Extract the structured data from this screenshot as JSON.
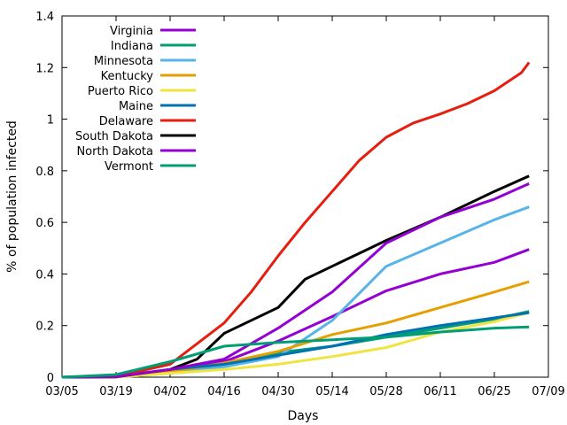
{
  "chart_data": {
    "type": "line",
    "xlabel": "Days",
    "ylabel": "% of population infected",
    "x_ticks": [
      "03/05",
      "03/19",
      "04/02",
      "04/16",
      "04/30",
      "05/14",
      "05/28",
      "06/11",
      "06/25",
      "07/09"
    ],
    "y_ticks": [
      "0",
      "0.2",
      "0.4",
      "0.6",
      "0.8",
      "1",
      "1.2",
      "1.4"
    ],
    "xlim": [
      "03/05",
      "07/09"
    ],
    "ylim": [
      0,
      1.4
    ],
    "grid": false,
    "legend_position": "top-left",
    "series": [
      {
        "name": "Virginia",
        "color": "#9400d3",
        "points": [
          [
            "03/05",
            0
          ],
          [
            "03/19",
            0.001
          ],
          [
            "04/02",
            0.02
          ],
          [
            "04/16",
            0.06
          ],
          [
            "04/30",
            0.14
          ],
          [
            "05/14",
            0.235
          ],
          [
            "05/28",
            0.335
          ],
          [
            "06/11",
            0.4
          ],
          [
            "06/25",
            0.445
          ],
          [
            "07/04",
            0.495
          ]
        ]
      },
      {
        "name": "Indiana",
        "color": "#009e73",
        "points": [
          [
            "03/05",
            0
          ],
          [
            "03/19",
            0.003
          ],
          [
            "04/02",
            0.025
          ],
          [
            "04/16",
            0.05
          ],
          [
            "04/30",
            0.095
          ],
          [
            "05/14",
            0.12
          ],
          [
            "05/28",
            0.155
          ],
          [
            "06/11",
            0.19
          ],
          [
            "06/25",
            0.225
          ],
          [
            "07/04",
            0.255
          ]
        ]
      },
      {
        "name": "Minnesota",
        "color": "#56b4e9",
        "points": [
          [
            "03/05",
            0
          ],
          [
            "03/19",
            0.001
          ],
          [
            "04/02",
            0.015
          ],
          [
            "04/16",
            0.04
          ],
          [
            "04/30",
            0.08
          ],
          [
            "05/14",
            0.22
          ],
          [
            "05/28",
            0.43
          ],
          [
            "06/11",
            0.52
          ],
          [
            "06/25",
            0.61
          ],
          [
            "07/04",
            0.66
          ]
        ]
      },
      {
        "name": "Kentucky",
        "color": "#e69f00",
        "points": [
          [
            "03/05",
            0
          ],
          [
            "03/19",
            0.001
          ],
          [
            "04/02",
            0.02
          ],
          [
            "04/16",
            0.055
          ],
          [
            "04/30",
            0.1
          ],
          [
            "05/14",
            0.165
          ],
          [
            "05/28",
            0.21
          ],
          [
            "06/11",
            0.27
          ],
          [
            "06/25",
            0.33
          ],
          [
            "07/04",
            0.37
          ]
        ]
      },
      {
        "name": "Puerto Rico",
        "color": "#f0e442",
        "points": [
          [
            "03/05",
            0
          ],
          [
            "03/19",
            0
          ],
          [
            "04/02",
            0.015
          ],
          [
            "04/16",
            0.03
          ],
          [
            "04/30",
            0.05
          ],
          [
            "05/14",
            0.08
          ],
          [
            "05/28",
            0.115
          ],
          [
            "06/11",
            0.175
          ],
          [
            "06/25",
            0.215
          ],
          [
            "07/04",
            0.25
          ]
        ]
      },
      {
        "name": "Maine",
        "color": "#0072b2",
        "points": [
          [
            "03/05",
            0
          ],
          [
            "03/19",
            0.003
          ],
          [
            "04/02",
            0.03
          ],
          [
            "04/16",
            0.05
          ],
          [
            "04/30",
            0.085
          ],
          [
            "05/14",
            0.12
          ],
          [
            "05/28",
            0.165
          ],
          [
            "06/11",
            0.2
          ],
          [
            "06/25",
            0.23
          ],
          [
            "07/04",
            0.25
          ]
        ]
      },
      {
        "name": "Delaware",
        "color": "#e51e10",
        "points": [
          [
            "03/05",
            0
          ],
          [
            "03/19",
            0.003
          ],
          [
            "04/02",
            0.05
          ],
          [
            "04/16",
            0.21
          ],
          [
            "04/23",
            0.33
          ],
          [
            "04/30",
            0.47
          ],
          [
            "05/07",
            0.6
          ],
          [
            "05/14",
            0.72
          ],
          [
            "05/21",
            0.84
          ],
          [
            "05/28",
            0.93
          ],
          [
            "06/04",
            0.985
          ],
          [
            "06/11",
            1.02
          ],
          [
            "06/18",
            1.06
          ],
          [
            "06/25",
            1.11
          ],
          [
            "07/02",
            1.18
          ],
          [
            "07/04",
            1.22
          ]
        ]
      },
      {
        "name": "South Dakota",
        "color": "#000000",
        "points": [
          [
            "03/05",
            0
          ],
          [
            "03/19",
            0.001
          ],
          [
            "04/02",
            0.03
          ],
          [
            "04/09",
            0.07
          ],
          [
            "04/16",
            0.17
          ],
          [
            "04/30",
            0.27
          ],
          [
            "05/07",
            0.38
          ],
          [
            "05/14",
            0.43
          ],
          [
            "05/21",
            0.48
          ],
          [
            "05/28",
            0.53
          ],
          [
            "06/11",
            0.62
          ],
          [
            "06/25",
            0.72
          ],
          [
            "07/04",
            0.78
          ]
        ]
      },
      {
        "name": "North Dakota",
        "color": "#9400d3",
        "points": [
          [
            "03/05",
            0
          ],
          [
            "03/19",
            0.002
          ],
          [
            "04/02",
            0.03
          ],
          [
            "04/16",
            0.07
          ],
          [
            "04/30",
            0.19
          ],
          [
            "05/14",
            0.33
          ],
          [
            "05/28",
            0.52
          ],
          [
            "06/11",
            0.62
          ],
          [
            "06/25",
            0.69
          ],
          [
            "07/04",
            0.75
          ]
        ]
      },
      {
        "name": "Vermont",
        "color": "#009e73",
        "points": [
          [
            "03/05",
            0
          ],
          [
            "03/19",
            0.01
          ],
          [
            "04/02",
            0.06
          ],
          [
            "04/16",
            0.12
          ],
          [
            "04/30",
            0.135
          ],
          [
            "05/14",
            0.145
          ],
          [
            "05/28",
            0.155
          ],
          [
            "06/11",
            0.175
          ],
          [
            "06/25",
            0.19
          ],
          [
            "07/04",
            0.195
          ]
        ]
      }
    ]
  }
}
